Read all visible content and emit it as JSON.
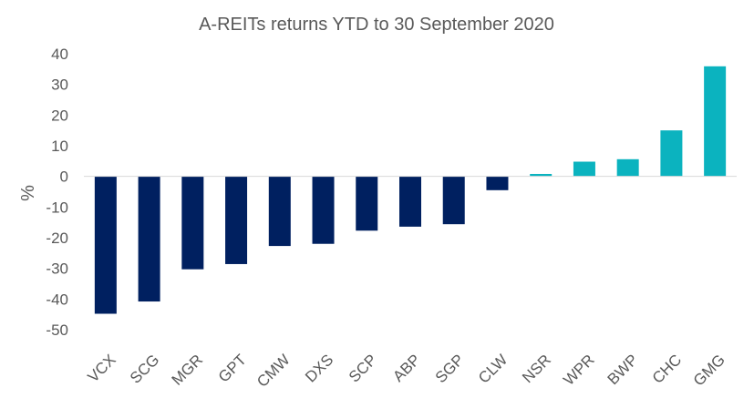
{
  "chart_data": {
    "type": "bar",
    "title": "A-REITs returns YTD to 30 September 2020",
    "ylabel": "%",
    "xlabel": "",
    "ylim": [
      -50,
      40
    ],
    "yticks": [
      40,
      30,
      20,
      10,
      0,
      -10,
      -20,
      -30,
      -40,
      -50
    ],
    "grid": false,
    "legend": "none",
    "categories": [
      "VCX",
      "SCG",
      "MGR",
      "GPT",
      "CMW",
      "DXS",
      "SCP",
      "ABP",
      "SGP",
      "CLW",
      "NSR",
      "WPR",
      "BWP",
      "CHC",
      "GMG"
    ],
    "values": [
      -44.8,
      -40.8,
      -30.3,
      -28.6,
      -22.7,
      -22.0,
      -17.7,
      -16.4,
      -15.6,
      -4.5,
      0.8,
      4.8,
      5.6,
      15.0,
      35.9
    ],
    "colors": {
      "negative": "#002060",
      "positive": "#0BB3BF",
      "axis": "#D9D9D9",
      "text": "#595959"
    }
  }
}
